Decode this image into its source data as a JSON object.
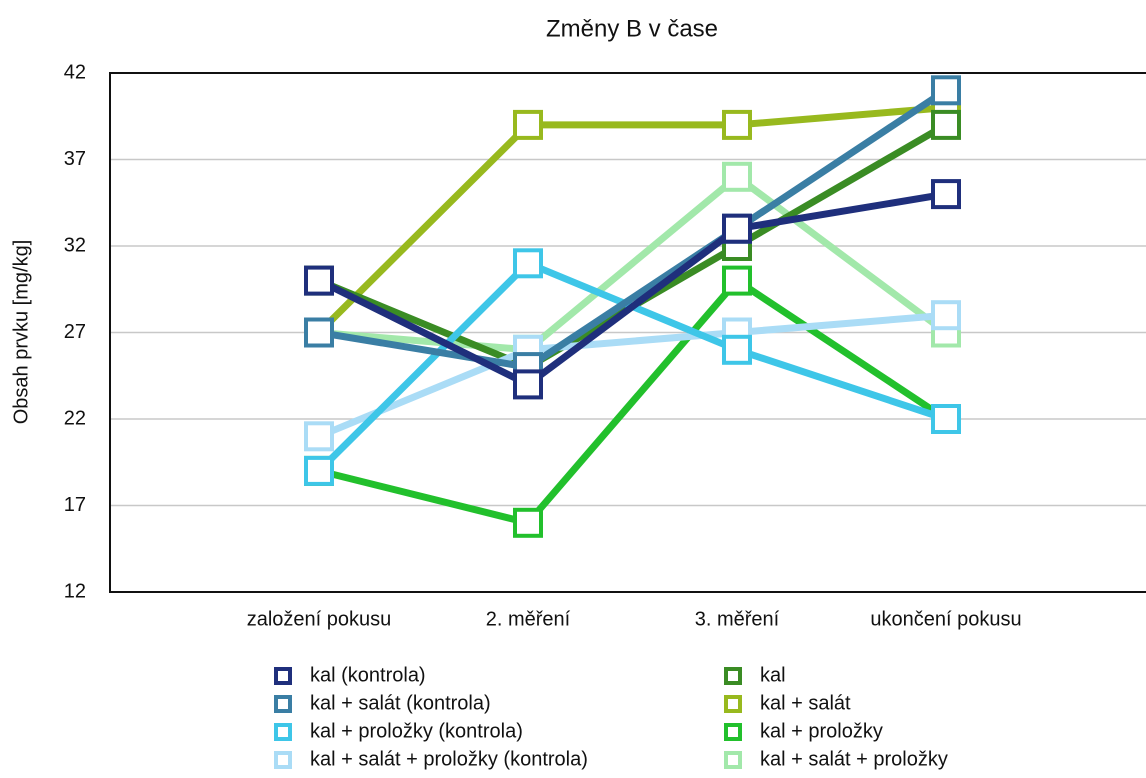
{
  "chart_data": {
    "type": "line",
    "title": "Změny B v čase",
    "y_label": "Obsah prvku [mg/kg]",
    "categories": [
      "založení pokusu",
      "2. měření",
      "3. měření",
      "ukončení pokusu"
    ],
    "ylim": [
      12,
      42
    ],
    "yticks": [
      12,
      17,
      22,
      27,
      32,
      37,
      42
    ],
    "grid": true,
    "series": [
      {
        "name": "kal (kontrola)",
        "color": "#1f2f7c",
        "values": [
          30,
          24,
          33,
          35
        ]
      },
      {
        "name": "kal + salát (kontrola)",
        "color": "#3a7ea4",
        "values": [
          27,
          25,
          33,
          41
        ]
      },
      {
        "name": "kal + proložky (kontrola)",
        "color": "#3ec6e8",
        "values": [
          19,
          31,
          26,
          22
        ]
      },
      {
        "name": "kal + salát + proložky (kontrola)",
        "color": "#aadcf6",
        "values": [
          21,
          26,
          27,
          28
        ]
      },
      {
        "name": "kal",
        "color": "#3a8c24",
        "values": [
          30,
          25,
          32,
          39
        ]
      },
      {
        "name": "kal + salát",
        "color": "#98b91e",
        "values": [
          27,
          39,
          39,
          40
        ]
      },
      {
        "name": "kal + proložky",
        "color": "#22c02c",
        "values": [
          19,
          16,
          30,
          22
        ]
      },
      {
        "name": "kal + salát + proložky",
        "color": "#a2e8aa",
        "values": [
          27,
          26,
          36,
          27
        ]
      }
    ]
  }
}
